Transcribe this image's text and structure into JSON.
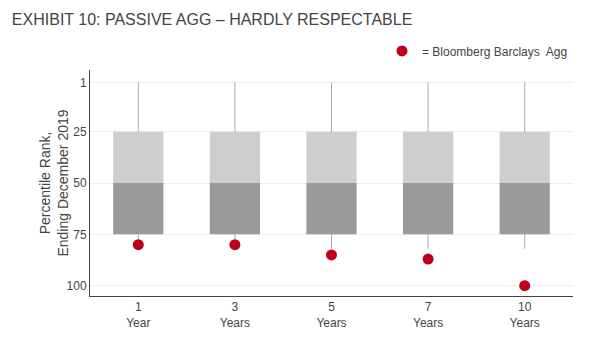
{
  "chart_data": {
    "type": "box",
    "title": "EXHIBIT 10: PASSIVE AGG – HARDLY RESPECTABLE",
    "ylabel": "Percentile Rank,\nEnding December 2019",
    "categories": [
      "1\nYear",
      "3\nYears",
      "5\nYears",
      "7\nYears",
      "10\nYears"
    ],
    "boxes": [
      {
        "type": "line",
        "color": "#aaaaaa",
        "from": [
          1,
          1,
          1,
          1,
          1
        ],
        "to": [
          80,
          80,
          82,
          82,
          82
        ]
      },
      {
        "type": "bar",
        "color": "#cecece",
        "from": [
          25,
          25,
          25,
          25,
          25
        ],
        "to": [
          50,
          50,
          50,
          50,
          50
        ]
      },
      {
        "type": "bar",
        "color": "#9a9a9a",
        "from": [
          50,
          50,
          50,
          50,
          50
        ],
        "to": [
          75,
          75,
          75,
          75,
          75
        ]
      }
    ],
    "series": [
      {
        "name": "= Bloomberg Barclays  Agg",
        "type": "scatter",
        "marker": "circle",
        "color": "#c0001a",
        "values": [
          80,
          80,
          85,
          87,
          100
        ]
      }
    ],
    "ylim": [
      105,
      -5
    ],
    "yticks": [
      1,
      25,
      50,
      75,
      100
    ],
    "grid": true,
    "legend": "upper right"
  }
}
